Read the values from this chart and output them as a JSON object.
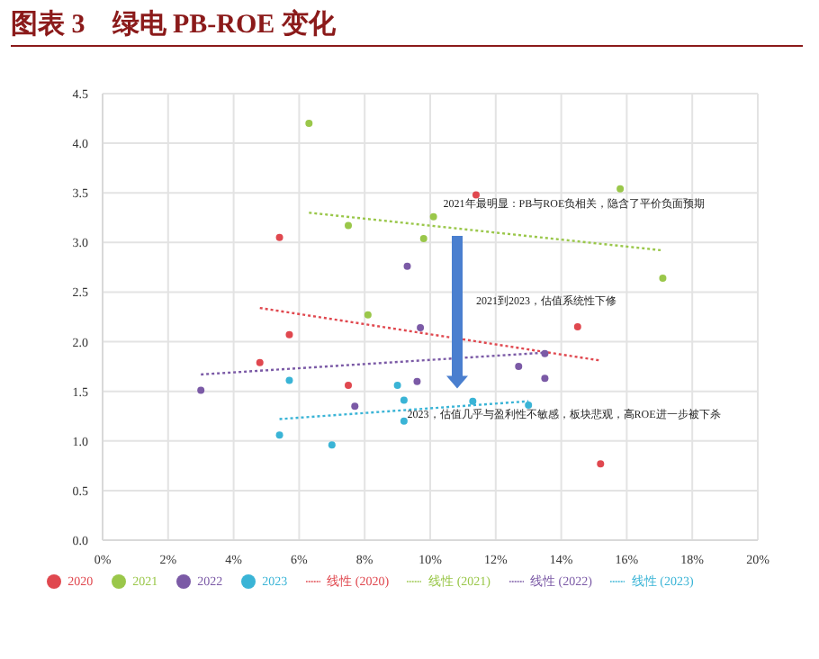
{
  "chart_data": {
    "type": "scatter",
    "title": "图表 3　绿电 PB-ROE 变化",
    "xlim": [
      0,
      20
    ],
    "xticks": [
      {
        "value": 0,
        "label": "0%"
      },
      {
        "value": 2,
        "label": "2%"
      },
      {
        "value": 4,
        "label": "4%"
      },
      {
        "value": 6,
        "label": "6%"
      },
      {
        "value": 8,
        "label": "8%"
      },
      {
        "value": 10,
        "label": "10%"
      },
      {
        "value": 12,
        "label": "12%"
      },
      {
        "value": 14,
        "label": "14%"
      },
      {
        "value": 16,
        "label": "16%"
      },
      {
        "value": 18,
        "label": "18%"
      },
      {
        "value": 20,
        "label": "20%"
      }
    ],
    "ylim": [
      0,
      4.5
    ],
    "yticks": [
      {
        "value": 0,
        "label": "0.0"
      },
      {
        "value": 0.5,
        "label": "0.5"
      },
      {
        "value": 1,
        "label": "1.0"
      },
      {
        "value": 1.5,
        "label": "1.5"
      },
      {
        "value": 2,
        "label": "2.0"
      },
      {
        "value": 2.5,
        "label": "2.5"
      },
      {
        "value": 3,
        "label": "3.0"
      },
      {
        "value": 3.5,
        "label": "3.5"
      },
      {
        "value": 4,
        "label": "4.0"
      },
      {
        "value": 4.5,
        "label": "4.5"
      }
    ],
    "grid": true,
    "legend": "bottom",
    "marker": "circle",
    "series": [
      {
        "name": "2020",
        "color": "#e0484f",
        "x": [
          5.4,
          5.7,
          4.8,
          7.5,
          11.4,
          14.5,
          15.2
        ],
        "values": [
          3.05,
          2.07,
          1.79,
          1.56,
          3.48,
          2.15,
          0.77
        ]
      },
      {
        "name": "2021",
        "color": "#9ac74a",
        "x": [
          6.3,
          7.5,
          8.1,
          9.8,
          10.1,
          15.8,
          17.1
        ],
        "values": [
          4.2,
          3.17,
          2.27,
          3.04,
          3.26,
          3.54,
          2.64
        ]
      },
      {
        "name": "2022",
        "color": "#7b5aa6",
        "x": [
          3.0,
          9.3,
          9.7,
          9.6,
          7.7,
          13.5,
          12.7,
          13.5
        ],
        "values": [
          1.51,
          2.76,
          2.14,
          1.6,
          1.35,
          1.88,
          1.75,
          1.63
        ]
      },
      {
        "name": "2023",
        "color": "#3ab4d6",
        "x": [
          5.7,
          5.4,
          7.0,
          9.0,
          9.2,
          9.2,
          11.3,
          13.0
        ],
        "values": [
          1.61,
          1.06,
          0.96,
          1.56,
          1.41,
          1.2,
          1.4,
          1.36
        ]
      },
      {
        "name": "线性 (2020)",
        "type": "line",
        "line_style": "dotted",
        "marker": "none",
        "color": "#e0484f",
        "x": [
          4.8,
          15.2
        ],
        "values": [
          2.34,
          1.81
        ]
      },
      {
        "name": "线性 (2021)",
        "type": "line",
        "line_style": "dotted",
        "marker": "none",
        "color": "#9ac74a",
        "x": [
          6.3,
          17.1
        ],
        "values": [
          3.3,
          2.92
        ]
      },
      {
        "name": "线性 (2022)",
        "type": "line",
        "line_style": "dotted",
        "marker": "none",
        "color": "#7b5aa6",
        "x": [
          3.0,
          13.5
        ],
        "values": [
          1.67,
          1.89
        ]
      },
      {
        "name": "线性 (2023)",
        "type": "line",
        "line_style": "dotted",
        "marker": "none",
        "color": "#3ab4d6",
        "x": [
          5.4,
          13.0
        ],
        "values": [
          1.22,
          1.4
        ]
      }
    ],
    "annotations": [
      "2021年最明显：PB与ROE负相关，隐含了平价负面预期",
      "2021到2023，估值系统性下修",
      "2023，估值几乎与盈利性不敏感，板块悲观，高ROE进一步被下杀"
    ]
  }
}
